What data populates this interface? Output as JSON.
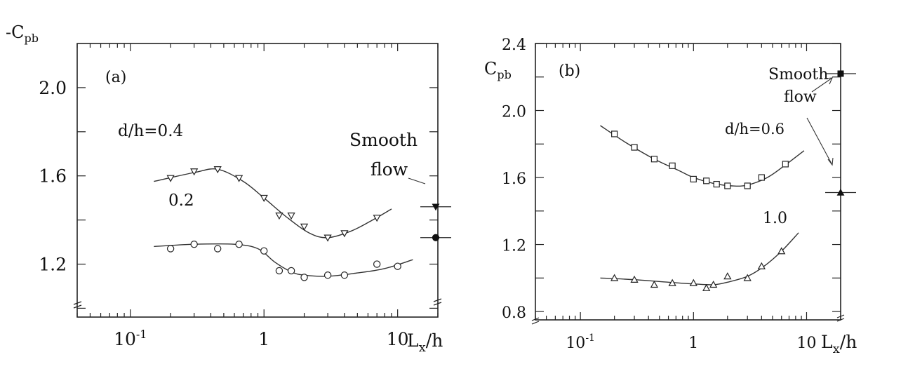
{
  "chart_data": [
    {
      "type": "line",
      "panel_label": "(a)",
      "ylabel": "-C",
      "ylabel_sub": "pb",
      "xlabel": "L",
      "xlabel_sub": "x",
      "xlabel_tail": "/h",
      "x_scale": "log",
      "xlim": [
        0.04,
        20
      ],
      "ylim": [
        0.96,
        2.2
      ],
      "x_ticks": [
        {
          "value": 0.1,
          "base": "10",
          "exp": "-1"
        },
        {
          "value": 1,
          "base": "1",
          "exp": ""
        },
        {
          "value": 10,
          "base": "10",
          "exp": ""
        }
      ],
      "y_ticks": [
        {
          "value": 1.2,
          "label": "1.2"
        },
        {
          "value": 1.6,
          "label": "1.6"
        },
        {
          "value": 2.0,
          "label": "2.0"
        }
      ],
      "y_minor_ticks": [
        1.0,
        1.4,
        1.8
      ],
      "series": [
        {
          "name": "d/h=0.4",
          "marker": "triangle-down",
          "points": [
            [
              0.2,
              1.59
            ],
            [
              0.3,
              1.62
            ],
            [
              0.45,
              1.63
            ],
            [
              0.65,
              1.59
            ],
            [
              1.0,
              1.5
            ],
            [
              1.3,
              1.42
            ],
            [
              1.6,
              1.42
            ],
            [
              2.0,
              1.37
            ],
            [
              3.0,
              1.32
            ],
            [
              4.0,
              1.34
            ],
            [
              7.0,
              1.41
            ]
          ],
          "curve": [
            [
              0.15,
              1.575
            ],
            [
              0.3,
              1.615
            ],
            [
              0.45,
              1.63
            ],
            [
              0.7,
              1.575
            ],
            [
              1.0,
              1.5
            ],
            [
              1.5,
              1.41
            ],
            [
              2.2,
              1.34
            ],
            [
              3.0,
              1.32
            ],
            [
              4.5,
              1.35
            ],
            [
              6.5,
              1.4
            ],
            [
              9.0,
              1.45
            ]
          ]
        },
        {
          "name": "0.2",
          "marker": "circle",
          "points": [
            [
              0.2,
              1.27
            ],
            [
              0.3,
              1.29
            ],
            [
              0.45,
              1.27
            ],
            [
              0.65,
              1.29
            ],
            [
              1.0,
              1.26
            ],
            [
              1.3,
              1.17
            ],
            [
              1.6,
              1.17
            ],
            [
              2.0,
              1.14
            ],
            [
              3.0,
              1.15
            ],
            [
              4.0,
              1.15
            ],
            [
              7.0,
              1.2
            ],
            [
              10.0,
              1.19
            ]
          ],
          "curve": [
            [
              0.15,
              1.28
            ],
            [
              0.3,
              1.29
            ],
            [
              0.6,
              1.29
            ],
            [
              0.9,
              1.27
            ],
            [
              1.2,
              1.21
            ],
            [
              1.6,
              1.165
            ],
            [
              2.0,
              1.15
            ],
            [
              3.0,
              1.145
            ],
            [
              5.0,
              1.16
            ],
            [
              8.0,
              1.18
            ],
            [
              13.0,
              1.22
            ]
          ]
        }
      ],
      "smooth_flow": {
        "label_line1": "Smooth",
        "label_line2": "flow",
        "points": [
          {
            "value": 1.46,
            "marker": "triangle-down-filled"
          },
          {
            "value": 1.32,
            "marker": "circle-filled"
          }
        ]
      }
    },
    {
      "type": "line",
      "panel_label": "(b)",
      "ylabel": "C",
      "ylabel_sub": "pb",
      "xlabel": "L",
      "xlabel_sub": "x",
      "xlabel_tail": "/h",
      "x_scale": "log",
      "xlim": [
        0.04,
        20
      ],
      "ylim": [
        0.75,
        2.4
      ],
      "x_ticks": [
        {
          "value": 0.1,
          "base": "10",
          "exp": "-1"
        },
        {
          "value": 1,
          "base": "1",
          "exp": ""
        },
        {
          "value": 10,
          "base": "10",
          "exp": ""
        }
      ],
      "y_ticks": [
        {
          "value": 0.8,
          "label": "0.8"
        },
        {
          "value": 1.2,
          "label": "1.2"
        },
        {
          "value": 1.6,
          "label": "1.6"
        },
        {
          "value": 2.0,
          "label": "2.0"
        },
        {
          "value": 2.4,
          "label": "2.4"
        }
      ],
      "y_minor_ticks": [
        1.0,
        1.4,
        1.8,
        2.2
      ],
      "series": [
        {
          "name": "d/h=0.6",
          "marker": "square",
          "points": [
            [
              0.2,
              1.86
            ],
            [
              0.3,
              1.78
            ],
            [
              0.45,
              1.71
            ],
            [
              0.65,
              1.67
            ],
            [
              1.0,
              1.59
            ],
            [
              1.3,
              1.58
            ],
            [
              1.6,
              1.56
            ],
            [
              2.0,
              1.55
            ],
            [
              3.0,
              1.55
            ],
            [
              4.0,
              1.6
            ],
            [
              6.5,
              1.68
            ]
          ],
          "curve": [
            [
              0.15,
              1.91
            ],
            [
              0.25,
              1.81
            ],
            [
              0.45,
              1.71
            ],
            [
              0.75,
              1.64
            ],
            [
              1.0,
              1.6
            ],
            [
              1.5,
              1.565
            ],
            [
              2.2,
              1.55
            ],
            [
              3.0,
              1.555
            ],
            [
              4.5,
              1.6
            ],
            [
              6.5,
              1.675
            ],
            [
              9.5,
              1.76
            ]
          ]
        },
        {
          "name": "1.0",
          "marker": "triangle-up",
          "points": [
            [
              0.2,
              1.0
            ],
            [
              0.3,
              0.99
            ],
            [
              0.45,
              0.96
            ],
            [
              0.65,
              0.97
            ],
            [
              1.0,
              0.97
            ],
            [
              1.3,
              0.94
            ],
            [
              1.5,
              0.96
            ],
            [
              2.0,
              1.01
            ],
            [
              3.0,
              1.0
            ],
            [
              4.0,
              1.07
            ],
            [
              6.0,
              1.16
            ]
          ],
          "curve": [
            [
              0.15,
              1.0
            ],
            [
              0.3,
              0.99
            ],
            [
              0.6,
              0.975
            ],
            [
              1.0,
              0.965
            ],
            [
              1.5,
              0.96
            ],
            [
              2.0,
              0.975
            ],
            [
              3.0,
              1.01
            ],
            [
              4.2,
              1.07
            ],
            [
              6.0,
              1.16
            ],
            [
              8.5,
              1.27
            ]
          ]
        }
      ],
      "smooth_flow": {
        "label_line1": "Smooth",
        "label_line2": "flow",
        "points": [
          {
            "value": 2.22,
            "marker": "square-filled"
          },
          {
            "value": 1.51,
            "marker": "triangle-up-filled"
          }
        ]
      }
    }
  ]
}
